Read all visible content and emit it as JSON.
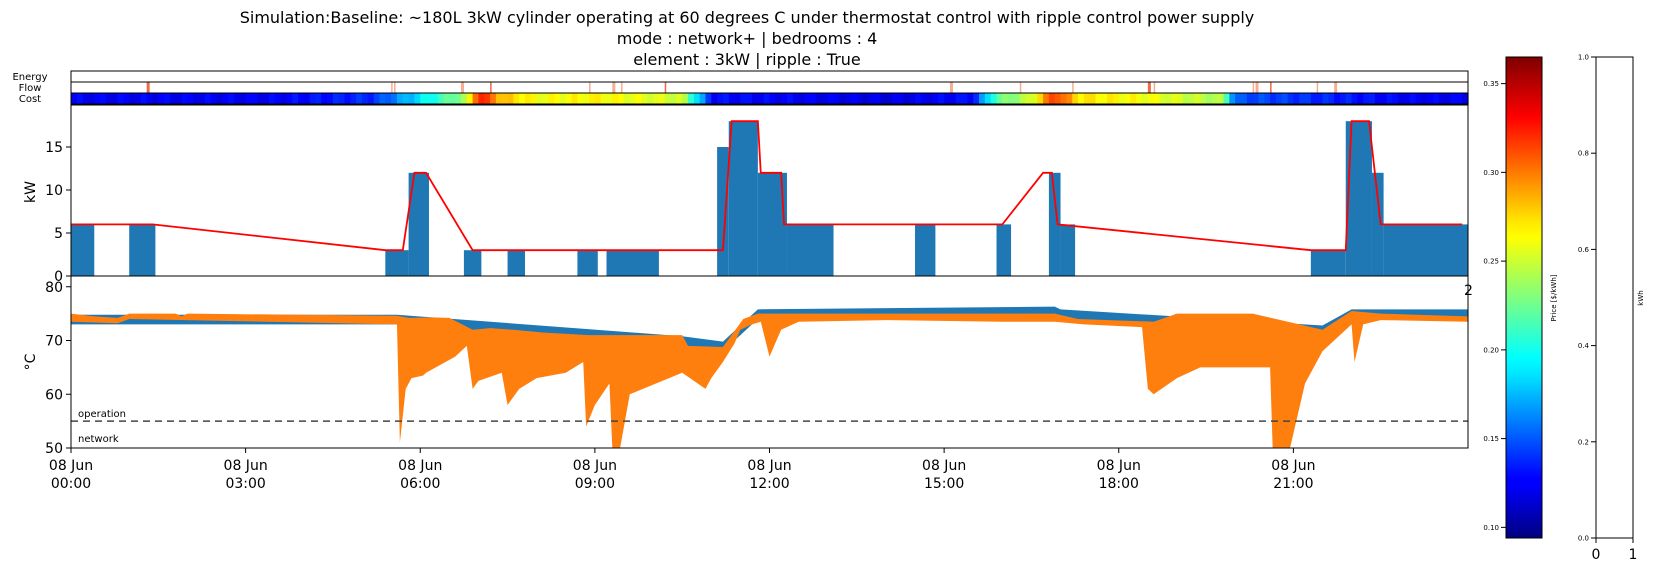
{
  "chart_data": [
    {
      "type": "heatmap",
      "name": "strip",
      "row_labels": [
        "Energy",
        "Flow",
        "Cost"
      ],
      "cost_profile": [
        [
          0,
          0.125
        ],
        [
          3.4,
          0.125
        ],
        [
          5.2,
          0.14
        ],
        [
          6.0,
          0.19
        ],
        [
          6.8,
          0.24
        ],
        [
          7.0,
          0.33
        ],
        [
          7.4,
          0.28
        ],
        [
          8.0,
          0.26
        ],
        [
          9.0,
          0.265
        ],
        [
          10.5,
          0.25
        ],
        [
          11.0,
          0.13
        ],
        [
          14.0,
          0.12
        ],
        [
          15.5,
          0.13
        ],
        [
          15.9,
          0.22
        ],
        [
          16.5,
          0.25
        ],
        [
          16.9,
          0.32
        ],
        [
          17.3,
          0.27
        ],
        [
          18.5,
          0.26
        ],
        [
          19.8,
          0.24
        ],
        [
          20.0,
          0.15
        ],
        [
          23.0,
          0.125
        ],
        [
          24.0,
          0.125
        ]
      ],
      "flow_events": [
        1.3,
        5.5,
        5.55,
        6.7,
        7.2,
        8.9,
        9.3,
        9.45,
        10.2,
        15.1,
        16.3,
        17.2,
        18.5,
        18.6,
        20.3,
        20.35,
        20.6,
        21.4,
        21.7
      ]
    },
    {
      "type": "bar",
      "name": "power",
      "ylabel": "kW",
      "ylim": [
        0,
        20
      ],
      "yticks": [
        0,
        5,
        10,
        15
      ],
      "bars": [
        [
          0.0,
          0.4,
          6
        ],
        [
          1.0,
          1.45,
          6
        ],
        [
          5.4,
          5.8,
          3
        ],
        [
          5.8,
          6.15,
          12
        ],
        [
          6.75,
          7.05,
          3
        ],
        [
          7.5,
          7.8,
          3
        ],
        [
          8.7,
          9.05,
          3
        ],
        [
          9.2,
          10.1,
          3
        ],
        [
          11.1,
          11.3,
          15
        ],
        [
          11.3,
          11.8,
          18
        ],
        [
          11.8,
          12.3,
          12
        ],
        [
          12.3,
          13.1,
          6
        ],
        [
          14.5,
          14.85,
          6
        ],
        [
          15.9,
          16.15,
          6
        ],
        [
          16.8,
          17.0,
          12
        ],
        [
          17.0,
          17.25,
          6
        ],
        [
          21.3,
          21.9,
          3
        ],
        [
          21.9,
          22.35,
          18
        ],
        [
          22.35,
          22.55,
          12
        ],
        [
          22.55,
          24.0,
          6
        ]
      ],
      "line": [
        [
          0.0,
          6
        ],
        [
          1.4,
          6
        ],
        [
          5.4,
          3
        ],
        [
          5.7,
          3
        ],
        [
          5.9,
          12
        ],
        [
          6.1,
          12
        ],
        [
          6.9,
          3
        ],
        [
          11.2,
          3
        ],
        [
          11.35,
          18
        ],
        [
          11.8,
          18
        ],
        [
          11.85,
          12
        ],
        [
          12.2,
          12
        ],
        [
          12.25,
          6
        ],
        [
          16.0,
          6
        ],
        [
          16.7,
          12
        ],
        [
          16.85,
          12
        ],
        [
          16.95,
          6
        ],
        [
          21.3,
          3
        ],
        [
          21.9,
          3
        ],
        [
          22.0,
          18
        ],
        [
          22.3,
          18
        ],
        [
          22.4,
          12
        ],
        [
          22.5,
          6
        ],
        [
          23.9,
          6
        ]
      ],
      "line_color": "#ff0000",
      "bar_color": "#1f77b4"
    },
    {
      "type": "area",
      "name": "temperature",
      "ylabel": "°C",
      "ylim": [
        50,
        82
      ],
      "yticks": [
        50,
        60,
        70,
        80
      ],
      "annotations": [
        "operation",
        "network"
      ],
      "operation_line": 55,
      "x_ticks": [
        "08 Jun\n00:00",
        "08 Jun\n03:00",
        "08 Jun\n06:00",
        "08 Jun\n09:00",
        "08 Jun\n12:00",
        "08 Jun\n15:00",
        "08 Jun\n18:00",
        "08 Jun\n21:00"
      ],
      "blue_band": [
        [
          0.0,
          73
        ],
        [
          5.6,
          73
        ],
        [
          10.5,
          69
        ],
        [
          11.2,
          68
        ],
        [
          11.8,
          74
        ],
        [
          16.9,
          74.5
        ],
        [
          17.0,
          74
        ],
        [
          21.5,
          71
        ],
        [
          22.0,
          74
        ],
        [
          24.0,
          74
        ]
      ],
      "orange_top": [
        [
          0.0,
          75
        ],
        [
          0.4,
          74.5
        ],
        [
          0.8,
          74.2
        ],
        [
          1.0,
          75
        ],
        [
          1.8,
          75
        ],
        [
          1.9,
          74.5
        ],
        [
          2.0,
          75
        ],
        [
          5.6,
          74.6
        ],
        [
          5.8,
          74.2
        ],
        [
          6.2,
          74.3
        ],
        [
          6.5,
          74.2
        ],
        [
          6.9,
          72
        ],
        [
          7.2,
          72.3
        ],
        [
          7.6,
          72
        ],
        [
          8.1,
          71.5
        ],
        [
          8.9,
          71
        ],
        [
          10.5,
          71
        ],
        [
          10.6,
          69
        ],
        [
          11.2,
          68.8
        ],
        [
          11.55,
          74
        ],
        [
          11.8,
          75
        ],
        [
          12.3,
          75
        ],
        [
          14.0,
          75
        ],
        [
          15.0,
          75
        ],
        [
          16.0,
          75
        ],
        [
          16.9,
          75
        ],
        [
          17.3,
          74
        ],
        [
          18.6,
          73.5
        ],
        [
          19.0,
          75
        ],
        [
          20.3,
          75
        ],
        [
          21.5,
          72
        ],
        [
          22.0,
          75.5
        ],
        [
          22.5,
          75
        ],
        [
          24.0,
          74.5
        ]
      ],
      "orange_bottom": [
        [
          0.0,
          73.5
        ],
        [
          0.8,
          73.2
        ],
        [
          1.0,
          74
        ],
        [
          5.6,
          73
        ],
        [
          5.65,
          51
        ],
        [
          5.75,
          61
        ],
        [
          5.85,
          63
        ],
        [
          6.05,
          63.5
        ],
        [
          6.1,
          64
        ],
        [
          6.6,
          67
        ],
        [
          6.8,
          69
        ],
        [
          6.9,
          61
        ],
        [
          7.0,
          62.5
        ],
        [
          7.4,
          64
        ],
        [
          7.5,
          58
        ],
        [
          7.7,
          61
        ],
        [
          8.0,
          63
        ],
        [
          8.5,
          64
        ],
        [
          8.8,
          66
        ],
        [
          8.85,
          54
        ],
        [
          9.0,
          58
        ],
        [
          9.25,
          62
        ],
        [
          9.3,
          50
        ],
        [
          9.4,
          48
        ],
        [
          9.5,
          54
        ],
        [
          9.6,
          60
        ],
        [
          10.5,
          64
        ],
        [
          10.9,
          61
        ],
        [
          11.0,
          63
        ],
        [
          11.2,
          66
        ],
        [
          11.4,
          69.5
        ],
        [
          11.5,
          72
        ],
        [
          11.7,
          73
        ],
        [
          11.85,
          73.5
        ],
        [
          12.0,
          67
        ],
        [
          12.2,
          72
        ],
        [
          12.5,
          73.5
        ],
        [
          14.0,
          73.8
        ],
        [
          16.0,
          73.5
        ],
        [
          16.9,
          73.5
        ],
        [
          17.4,
          73
        ],
        [
          18.4,
          72.5
        ],
        [
          18.5,
          61
        ],
        [
          18.6,
          60
        ],
        [
          19.0,
          63
        ],
        [
          19.2,
          64
        ],
        [
          19.3,
          64.5
        ],
        [
          19.4,
          65
        ],
        [
          20.6,
          65
        ],
        [
          20.65,
          48
        ],
        [
          20.9,
          48
        ],
        [
          21.2,
          62
        ],
        [
          21.5,
          68
        ],
        [
          22.0,
          73
        ],
        [
          22.05,
          66
        ],
        [
          22.2,
          73
        ],
        [
          22.5,
          73.8
        ],
        [
          24.0,
          73.5
        ]
      ],
      "band_color": "#1f77b4",
      "fill_color": "#ff7f0e"
    }
  ],
  "title": {
    "line1": "Simulation:Baseline: ~180L 3kW cylinder operating at 60 degrees C under thermostat control with ripple control power supply",
    "line2": "mode : network+ | bedrooms : 4",
    "line3": "element : 3kW | ripple : True"
  },
  "colorbar_price": {
    "label": "Price [$/kWh]",
    "ticks": [
      "0.10",
      "0.15",
      "0.20",
      "0.25",
      "0.30",
      "0.35"
    ],
    "range": [
      0.094,
      0.365
    ]
  },
  "colorbar_kwh": {
    "label": "kWh",
    "ticks": [
      "0.0",
      "0.2",
      "0.4",
      "0.6",
      "0.8",
      "1.0"
    ],
    "x_ticks": [
      "0",
      "1"
    ]
  },
  "stray_tick": "2"
}
